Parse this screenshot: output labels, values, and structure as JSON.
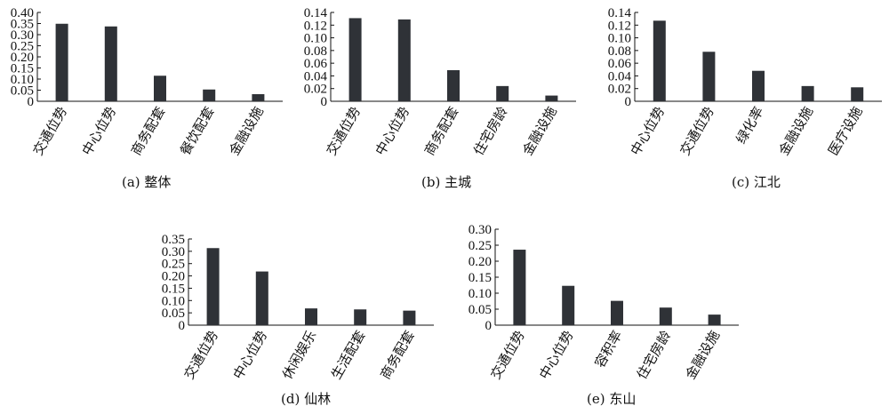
{
  "chart_data": [
    {
      "type": "bar",
      "caption": "(a) 整体",
      "categories": [
        "交通位势",
        "中心位势",
        "商务配套",
        "餐饮配套",
        "金融设施"
      ],
      "values": [
        0.349,
        0.337,
        0.115,
        0.053,
        0.032
      ],
      "ylim": [
        0,
        0.4
      ],
      "yticks": [
        "0",
        "0.05",
        "0.10",
        "0.15",
        "0.20",
        "0.25",
        "0.30",
        "0.35",
        "0.40"
      ],
      "bar_color": "#2f3237"
    },
    {
      "type": "bar",
      "caption": "(b) 主城",
      "categories": [
        "交通位势",
        "中心位势",
        "商务配套",
        "住宅房龄",
        "金融设施"
      ],
      "values": [
        0.131,
        0.129,
        0.049,
        0.024,
        0.009
      ],
      "ylim": [
        0,
        0.14
      ],
      "yticks": [
        "0",
        "0.02",
        "0.04",
        "0.06",
        "0.08",
        "0.10",
        "0.12",
        "0.14"
      ],
      "bar_color": "#2f3237"
    },
    {
      "type": "bar",
      "caption": "(c) 江北",
      "categories": [
        "中心位势",
        "交通位势",
        "绿化率",
        "金融设施",
        "医疗设施"
      ],
      "values": [
        0.127,
        0.078,
        0.048,
        0.024,
        0.022
      ],
      "ylim": [
        0,
        0.14
      ],
      "yticks": [
        "0",
        "0.02",
        "0.04",
        "0.06",
        "0.08",
        "0.10",
        "0.12",
        "0.14"
      ],
      "bar_color": "#2f3237"
    },
    {
      "type": "bar",
      "caption": "(d) 仙林",
      "categories": [
        "交通位势",
        "中心位势",
        "休闲娱乐",
        "生活配套",
        "商务配套"
      ],
      "values": [
        0.313,
        0.218,
        0.068,
        0.064,
        0.059
      ],
      "ylim": [
        0,
        0.35
      ],
      "yticks": [
        "0",
        "0.05",
        "0.10",
        "0.15",
        "0.20",
        "0.25",
        "0.30",
        "0.35"
      ],
      "bar_color": "#2f3237"
    },
    {
      "type": "bar",
      "caption": "(e) 东山",
      "categories": [
        "交通位势",
        "中心位势",
        "容积率",
        "住宅房龄",
        "金融设施"
      ],
      "values": [
        0.236,
        0.123,
        0.076,
        0.055,
        0.033
      ],
      "ylim": [
        0,
        0.3
      ],
      "yticks": [
        "0",
        "0.05",
        "0.10",
        "0.15",
        "0.20",
        "0.25",
        "0.30"
      ],
      "bar_color": "#2f3237"
    }
  ]
}
